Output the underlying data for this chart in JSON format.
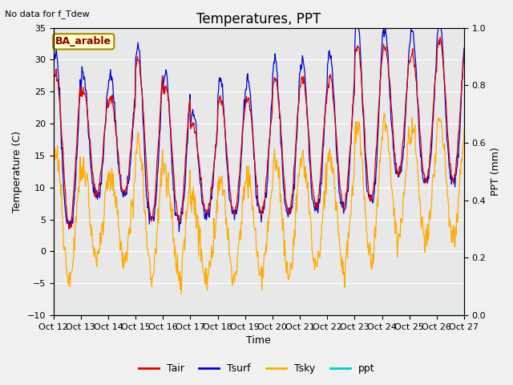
{
  "title": "Temperatures, PPT",
  "subtitle": "No data for f_Tdew",
  "station_label": "BA_arable",
  "xlabel": "Time",
  "ylabel_left": "Temperature (C)",
  "ylabel_right": "PPT (mm)",
  "ylim_left": [
    -10,
    35
  ],
  "ylim_right": [
    0.0,
    1.0
  ],
  "yticks_left": [
    -10,
    -5,
    0,
    5,
    10,
    15,
    20,
    25,
    30,
    35
  ],
  "yticks_right": [
    0.0,
    0.2,
    0.4,
    0.6,
    0.8,
    1.0
  ],
  "xtick_labels": [
    "Oct 12",
    "Oct 13",
    "Oct 14",
    "Oct 15",
    "Oct 16",
    "Oct 17",
    "Oct 18",
    "Oct 19",
    "Oct 20",
    "Oct 21",
    "Oct 22",
    "Oct 23",
    "Oct 24",
    "Oct 25",
    "Oct 26",
    "Oct 27"
  ],
  "colors": {
    "Tair": "#dd0000",
    "Tsurf": "#0000cc",
    "Tsky": "#ffaa00",
    "ppt": "#00cccc",
    "background": "#e8e8e8",
    "grid": "#ffffff"
  },
  "legend_entries": [
    "Tair",
    "Tsurf",
    "Tsky",
    "ppt"
  ],
  "n_days": 15,
  "tair_min_day": [
    4,
    9,
    9,
    5,
    5,
    6,
    6,
    6,
    6,
    7,
    7,
    8,
    12,
    11,
    11
  ],
  "tair_max_day": [
    28,
    25,
    24,
    30,
    26,
    20,
    24,
    24,
    27,
    27,
    27,
    32,
    32,
    31,
    33
  ],
  "tsurf_extra": [
    3,
    3,
    4,
    2,
    2,
    2,
    3,
    3,
    3,
    3,
    4,
    4,
    3,
    4,
    3
  ],
  "tsky_shift": -11,
  "tsky_amplitude_scale": 0.85,
  "ppt_value": 0.0,
  "title_fontsize": 12,
  "label_fontsize": 9,
  "tick_fontsize": 8,
  "n_pts_per_day": 48
}
